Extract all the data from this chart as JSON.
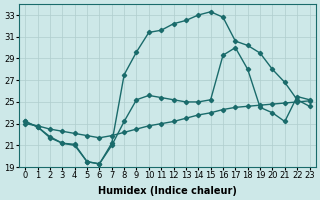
{
  "xlabel": "Humidex (Indice chaleur)",
  "ylabel": "",
  "background_color": "#cde8e8",
  "line_color": "#1a6b6b",
  "grid_color": "#b0cece",
  "xlim": [
    -0.5,
    23.5
  ],
  "ylim": [
    19,
    34
  ],
  "yticks": [
    19,
    21,
    23,
    25,
    27,
    29,
    31,
    33
  ],
  "xticks": [
    0,
    1,
    2,
    3,
    4,
    5,
    6,
    7,
    8,
    9,
    10,
    11,
    12,
    13,
    14,
    15,
    16,
    17,
    18,
    19,
    20,
    21,
    22,
    23
  ],
  "line1_x": [
    0,
    1,
    2,
    3,
    4,
    5,
    6,
    7,
    8,
    9,
    10,
    11,
    12,
    13,
    14,
    15,
    16,
    17,
    18,
    19,
    20,
    21,
    22,
    23
  ],
  "line1_y": [
    23.2,
    22.7,
    21.8,
    21.2,
    21.1,
    19.5,
    19.3,
    21.2,
    27.5,
    29.6,
    31.4,
    31.6,
    32.2,
    32.5,
    33.0,
    33.3,
    32.8,
    30.6,
    30.2,
    29.5,
    28.0,
    26.8,
    25.2,
    24.6
  ],
  "line2_x": [
    0,
    1,
    2,
    3,
    4,
    5,
    6,
    7,
    8,
    9,
    10,
    11,
    12,
    13,
    14,
    15,
    16,
    17,
    18,
    19,
    20,
    21,
    22,
    23
  ],
  "line2_y": [
    23.0,
    22.8,
    22.5,
    22.3,
    22.1,
    21.9,
    21.7,
    21.9,
    22.2,
    22.5,
    22.8,
    23.0,
    23.2,
    23.5,
    23.8,
    24.0,
    24.3,
    24.5,
    24.6,
    24.7,
    24.8,
    24.9,
    25.0,
    25.1
  ],
  "line3_x": [
    0,
    1,
    2,
    3,
    4,
    5,
    6,
    7,
    8,
    9,
    10,
    11,
    12,
    13,
    14,
    15,
    16,
    17,
    18,
    19,
    20,
    21,
    22,
    23
  ],
  "line3_y": [
    23.2,
    22.7,
    21.7,
    21.2,
    21.0,
    19.5,
    19.3,
    21.0,
    23.2,
    25.2,
    25.6,
    25.4,
    25.2,
    25.0,
    25.0,
    25.2,
    29.3,
    30.0,
    28.0,
    24.5,
    24.0,
    23.2,
    25.5,
    25.2
  ],
  "marker": "D",
  "markersize": 2.2,
  "linewidth": 1.0,
  "label_fontsize": 7,
  "tick_fontsize": 6
}
